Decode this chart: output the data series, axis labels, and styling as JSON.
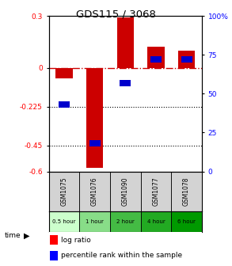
{
  "title": "GDS115 / 3068",
  "samples": [
    "GSM1075",
    "GSM1076",
    "GSM1090",
    "GSM1077",
    "GSM1078"
  ],
  "time_labels": [
    "0.5 hour",
    "1 hour",
    "2 hour",
    "4 hour",
    "6 hour"
  ],
  "time_colors": [
    "#ccffcc",
    "#88dd88",
    "#44bb44",
    "#22aa22",
    "#009900"
  ],
  "log_ratios": [
    -0.06,
    -0.58,
    0.29,
    0.12,
    0.1
  ],
  "percentile_ranks": [
    43,
    18,
    57,
    72,
    72
  ],
  "ylim_main": [
    -0.6,
    0.3
  ],
  "ylim_right": [
    0,
    100
  ],
  "yticks_left": [
    0.3,
    0.0,
    -0.225,
    -0.45,
    -0.6
  ],
  "ytick_labels_left": [
    "0.3",
    "0",
    "-0.225",
    "-0.45",
    "-0.6"
  ],
  "yticks_right": [
    100,
    75,
    50,
    25,
    0
  ],
  "ytick_labels_right": [
    "100%",
    "75",
    "50",
    "25",
    "0"
  ],
  "bar_color": "#cc0000",
  "dot_color": "#0000cc",
  "zero_line_color": "#cc0000",
  "background_color": "#ffffff"
}
